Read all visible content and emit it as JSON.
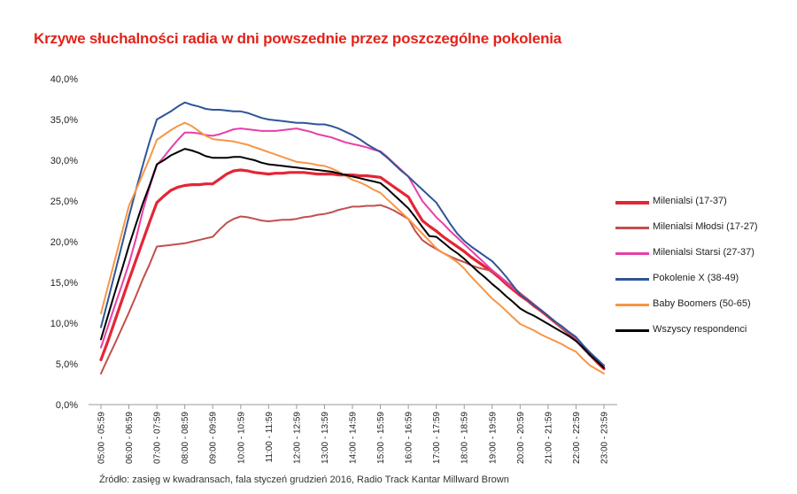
{
  "chart_data": {
    "type": "line",
    "title": "Krzywe słuchalności radia w dni powszednie przez poszczególne pokolenia",
    "source": "Źródło: zasięg w kwadransach, fala styczeń  grudzień 2016, Radio Track Kantar Millward Brown",
    "categories": [
      "05:00 - 05:59",
      "06:00 - 06:59",
      "07:00 - 07:59",
      "08:00 - 08:59",
      "09:00 - 09:59",
      "10:00 - 10:59",
      "11:00 - 11:59",
      "12:00 - 12:59",
      "13:00 - 13:59",
      "14:00 - 14:59",
      "15:00 - 15:59",
      "16:00 - 16:59",
      "17:00 - 17:59",
      "18:00 - 18:59",
      "19:00 - 19:59",
      "20:00 - 20:59",
      "21:00 - 21:59",
      "22:00 - 22:59",
      "23:00 - 23:59"
    ],
    "x": [
      5,
      5.25,
      5.5,
      5.75,
      6,
      6.25,
      6.5,
      6.75,
      7,
      7.25,
      7.5,
      7.75,
      8,
      8.25,
      8.5,
      8.75,
      9,
      9.25,
      9.5,
      9.75,
      10,
      10.25,
      10.5,
      10.75,
      11,
      11.25,
      11.5,
      11.75,
      12,
      12.25,
      12.5,
      12.75,
      13,
      13.25,
      13.5,
      13.75,
      14,
      14.25,
      14.5,
      14.75,
      15,
      15.25,
      15.5,
      15.75,
      16,
      16.25,
      16.5,
      16.75,
      17,
      17.25,
      17.5,
      17.75,
      18,
      18.25,
      18.5,
      18.75,
      19,
      19.25,
      19.5,
      19.75,
      20,
      20.25,
      20.5,
      20.75,
      21,
      21.25,
      21.5,
      21.75,
      22,
      22.25,
      22.5,
      22.75,
      23
    ],
    "ylim": [
      0,
      40
    ],
    "yticks": [
      "0,0%",
      "5,0%",
      "10,0%",
      "15,0%",
      "20,0%",
      "25,0%",
      "30,0%",
      "35,0%",
      "40,0%"
    ],
    "series": [
      {
        "name": "Milenialsi (17-37)",
        "color": "#e32636",
        "width": 3.2,
        "values": [
          5.5,
          7.8,
          10.3,
          12.8,
          15.3,
          17.7,
          20.1,
          22.5,
          24.8,
          25.6,
          26.3,
          26.7,
          26.9,
          27.0,
          27.0,
          27.1,
          27.1,
          27.7,
          28.3,
          28.7,
          28.8,
          28.7,
          28.5,
          28.4,
          28.3,
          28.4,
          28.4,
          28.5,
          28.5,
          28.5,
          28.4,
          28.3,
          28.3,
          28.3,
          28.2,
          28.2,
          28.2,
          28.1,
          28.1,
          28.0,
          27.9,
          27.3,
          26.7,
          26.1,
          25.5,
          24.0,
          22.6,
          21.9,
          21.3,
          20.6,
          20.0,
          19.4,
          18.8,
          18.1,
          17.5,
          16.9,
          16.3,
          15.6,
          14.8,
          14.1,
          13.4,
          12.8,
          12.1,
          11.5,
          10.8,
          10.1,
          9.4,
          8.8,
          8.1,
          7.1,
          6.1,
          5.2,
          4.4
        ]
      },
      {
        "name": "Milenialsi Młodsi (17-27)",
        "color": "#c0504d",
        "width": 2,
        "values": [
          3.8,
          5.7,
          7.5,
          9.4,
          11.3,
          13.3,
          15.4,
          17.3,
          19.4,
          19.5,
          19.6,
          19.7,
          19.8,
          20.0,
          20.2,
          20.4,
          20.6,
          21.5,
          22.3,
          22.8,
          23.1,
          23.0,
          22.8,
          22.6,
          22.5,
          22.6,
          22.7,
          22.7,
          22.8,
          23.0,
          23.1,
          23.3,
          23.4,
          23.6,
          23.9,
          24.1,
          24.3,
          24.3,
          24.4,
          24.4,
          24.5,
          24.2,
          23.8,
          23.3,
          22.8,
          21.3,
          20.2,
          19.6,
          19.1,
          18.6,
          18.2,
          17.8,
          17.5,
          17.1,
          16.8,
          16.6,
          16.4,
          15.8,
          15.1,
          14.4,
          13.7,
          13.0,
          12.3,
          11.6,
          10.9,
          10.1,
          9.3,
          8.6,
          7.9,
          6.9,
          6.0,
          5.2,
          4.6
        ]
      },
      {
        "name": "Milenialsi Starsi (27-37)",
        "color": "#e83fa8",
        "width": 2,
        "values": [
          7.0,
          9.6,
          12.2,
          14.7,
          17.3,
          20.3,
          23.8,
          26.8,
          29.4,
          30.4,
          31.5,
          32.5,
          33.4,
          33.4,
          33.3,
          33.1,
          33.0,
          33.2,
          33.5,
          33.8,
          33.9,
          33.8,
          33.7,
          33.6,
          33.6,
          33.6,
          33.7,
          33.8,
          33.9,
          33.7,
          33.5,
          33.2,
          33.0,
          32.8,
          32.5,
          32.2,
          32.0,
          31.8,
          31.6,
          31.3,
          31.1,
          30.4,
          29.6,
          28.8,
          28.0,
          26.5,
          25.0,
          24.0,
          23.0,
          22.2,
          21.3,
          20.5,
          19.7,
          18.9,
          18.1,
          17.3,
          16.5,
          15.8,
          15.0,
          14.3,
          13.6,
          12.9,
          12.2,
          11.6,
          10.9,
          10.2,
          9.5,
          8.9,
          8.2,
          7.2,
          6.2,
          5.4,
          4.6
        ]
      },
      {
        "name": "Pokolenie X (38-49)",
        "color": "#2f5597",
        "width": 2,
        "values": [
          9.5,
          12.8,
          16.2,
          19.6,
          23.1,
          26.3,
          29.4,
          32.4,
          35.0,
          35.5,
          36.0,
          36.6,
          37.1,
          36.8,
          36.6,
          36.3,
          36.2,
          36.2,
          36.1,
          36.0,
          36.0,
          35.8,
          35.5,
          35.2,
          35.0,
          34.9,
          34.8,
          34.7,
          34.6,
          34.6,
          34.5,
          34.4,
          34.4,
          34.2,
          33.9,
          33.5,
          33.1,
          32.6,
          32.0,
          31.5,
          31.0,
          30.3,
          29.5,
          28.7,
          28.0,
          27.2,
          26.4,
          25.6,
          24.8,
          23.5,
          22.2,
          21.0,
          20.1,
          19.4,
          18.8,
          18.2,
          17.6,
          16.7,
          15.7,
          14.6,
          13.5,
          12.9,
          12.2,
          11.6,
          10.9,
          10.2,
          9.6,
          8.9,
          8.3,
          7.3,
          6.4,
          5.6,
          4.8
        ]
      },
      {
        "name": "Baby Boomers (50-65)",
        "color": "#f79646",
        "width": 2,
        "values": [
          11.2,
          14.5,
          17.8,
          21.1,
          24.4,
          26.3,
          28.3,
          30.3,
          32.5,
          33.1,
          33.7,
          34.2,
          34.6,
          34.2,
          33.6,
          33.0,
          32.6,
          32.5,
          32.4,
          32.3,
          32.1,
          31.9,
          31.6,
          31.3,
          31.0,
          30.7,
          30.4,
          30.1,
          29.8,
          29.7,
          29.6,
          29.4,
          29.3,
          29.0,
          28.6,
          28.1,
          27.6,
          27.3,
          26.9,
          26.4,
          26.0,
          25.2,
          24.4,
          23.6,
          22.8,
          21.9,
          21.0,
          20.1,
          19.2,
          18.6,
          18.1,
          17.5,
          16.7,
          15.7,
          14.8,
          13.9,
          13.0,
          12.3,
          11.5,
          10.7,
          9.9,
          9.5,
          9.1,
          8.6,
          8.2,
          7.8,
          7.4,
          6.9,
          6.5,
          5.6,
          4.8,
          4.3,
          3.8
        ]
      },
      {
        "name": "Wszyscy respondenci",
        "color": "#000000",
        "width": 2,
        "values": [
          8.0,
          10.9,
          13.8,
          16.6,
          19.5,
          22.1,
          24.7,
          27.0,
          29.5,
          30.0,
          30.6,
          31.0,
          31.4,
          31.2,
          30.9,
          30.5,
          30.3,
          30.3,
          30.3,
          30.4,
          30.4,
          30.2,
          30.0,
          29.7,
          29.5,
          29.4,
          29.3,
          29.2,
          29.1,
          29.0,
          28.9,
          28.8,
          28.7,
          28.6,
          28.4,
          28.2,
          28.0,
          27.8,
          27.6,
          27.4,
          27.2,
          26.5,
          25.7,
          24.9,
          24.1,
          23.0,
          21.8,
          20.7,
          20.6,
          19.9,
          19.2,
          18.6,
          17.9,
          17.1,
          16.3,
          15.6,
          14.8,
          14.1,
          13.3,
          12.6,
          11.8,
          11.3,
          10.9,
          10.4,
          9.9,
          9.4,
          8.9,
          8.4,
          7.8,
          7.0,
          6.1,
          5.3,
          4.5
        ]
      }
    ]
  }
}
